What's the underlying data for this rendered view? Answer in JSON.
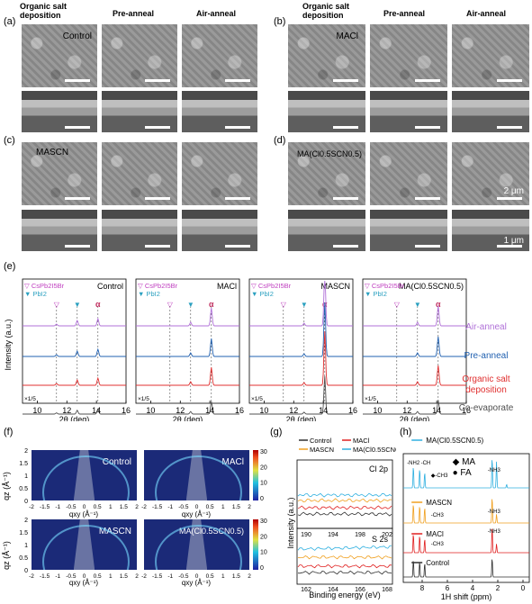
{
  "sem_section": {
    "headers": {
      "organic": "Organic salt deposition",
      "pre": "Pre-anneal",
      "air": "Air-anneal"
    },
    "panels": [
      {
        "label": "(a)",
        "sample": "Control"
      },
      {
        "label": "(b)",
        "sample": "MACl"
      },
      {
        "label": "(c)",
        "sample": "MASCN"
      },
      {
        "label": "(d)",
        "sample": "MA(Cl0.5SCN0.5)"
      }
    ],
    "scale_top": "2 μm",
    "scale_cross": "1 μm"
  },
  "xrd": {
    "label": "(e)",
    "ylabel": "Intensity (a.u.)",
    "xlabel": "2θ (deg)",
    "ticks": [
      "10",
      "12",
      "14",
      "16"
    ],
    "legend_cs": "CsPb2I5Br",
    "legend_pbi": "PbI2",
    "alpha": "α",
    "scale_note": "×1/5",
    "panels": [
      "Control",
      "MACl",
      "MASCN",
      "MA(Cl0.5SCN0.5)"
    ],
    "traces": [
      {
        "name": "Air-anneal",
        "color": "#b070d8"
      },
      {
        "name": "Pre-anneal",
        "color": "#2060b0"
      },
      {
        "name": "Organic salt deposition",
        "color": "#e03030"
      },
      {
        "name": "Co-evaporate",
        "color": "#505050"
      }
    ]
  },
  "giwaxs": {
    "label": "(f)",
    "panels": [
      "Control",
      "MACl",
      "MASCN",
      "MA(Cl0.5SCN0.5)"
    ],
    "qz_label": "qz (Å⁻¹)",
    "qxy_label": "qxy (Å⁻¹)",
    "y_ticks": [
      "2",
      "1.5",
      "1",
      "0.5",
      "0"
    ],
    "x_ticks": [
      "-2",
      "-1.5",
      "-1",
      "-0.5",
      "0",
      "0.5",
      "1",
      "1.5",
      "2"
    ],
    "cbar_ticks": [
      "30",
      "20",
      "10",
      "0"
    ]
  },
  "xps": {
    "label": "(g)",
    "legend": [
      {
        "name": "Control",
        "color": "#303030"
      },
      {
        "name": "MACl",
        "color": "#e02020"
      },
      {
        "name": "MASCN",
        "color": "#f0a020"
      },
      {
        "name": "MA(Cl0.5SCN0.5)",
        "color": "#30b0e0"
      }
    ],
    "cl_label": "Cl 2p",
    "cl_ticks": [
      "190",
      "194",
      "198",
      "202"
    ],
    "s_label": "S 2s",
    "s_ticks": [
      "162",
      "164",
      "166",
      "168"
    ],
    "ylabel": "Intensity (a.u.)",
    "xlabel": "Binding energy (eV)"
  },
  "nmr": {
    "label": "(h)",
    "ma_label": "MA",
    "fa_label": "FA",
    "traces": [
      {
        "name": "MA(Cl0.5SCN0.5)",
        "color": "#30b0e0"
      },
      {
        "name": "MASCN",
        "color": "#f0a020"
      },
      {
        "name": "MACl",
        "color": "#e02020"
      },
      {
        "name": "Control",
        "color": "#303030"
      }
    ],
    "peaks": {
      "nh2": "-NH2",
      "ch": "-CH",
      "ch3": "-CH3",
      "nh3": "-NH3"
    },
    "ticks": [
      "8",
      "6",
      "4",
      "2",
      "0"
    ],
    "xlabel": "1H shift (ppm)"
  }
}
